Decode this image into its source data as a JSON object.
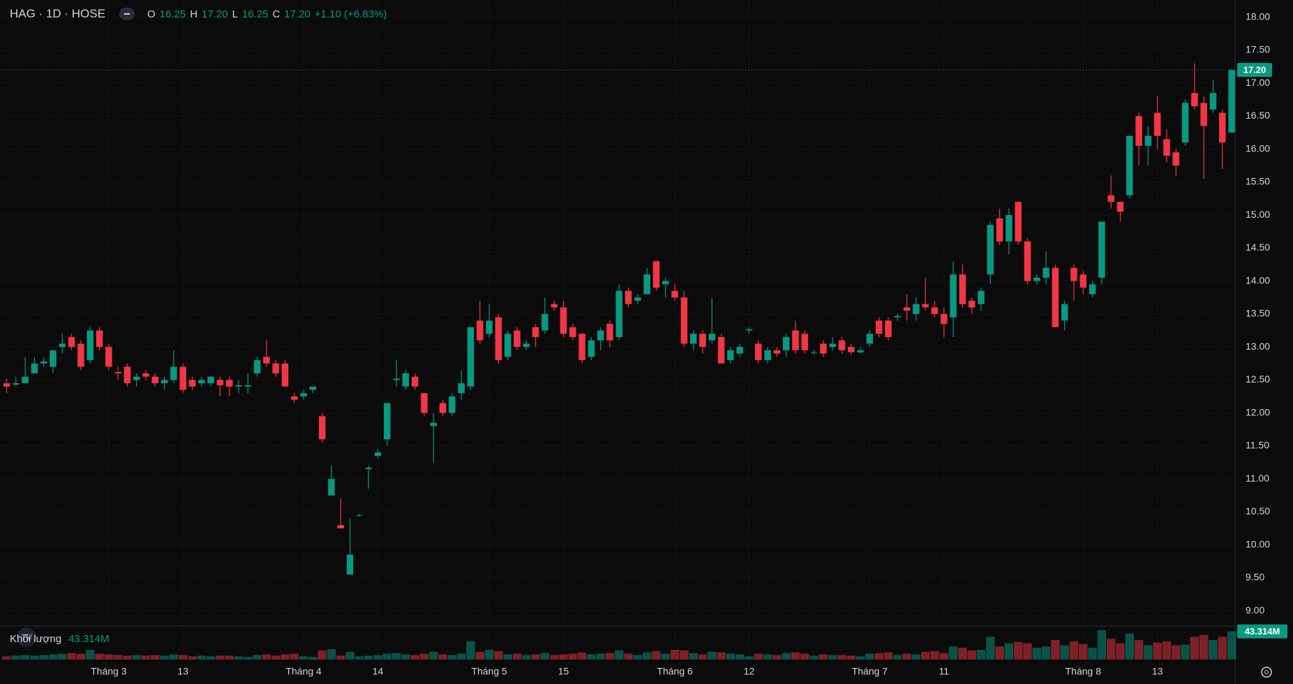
{
  "chart_data": {
    "type": "candlestick",
    "header": {
      "symbol": "HAG · 1D · HOSE",
      "o": "O",
      "o_value": "16.25",
      "h": "H",
      "h_value": "17.20",
      "l": "L",
      "l_value": "16.25",
      "c": "C",
      "c_value": "17.20",
      "change": "+1.10 (+6.83%)"
    },
    "volume_title": "Khối lượng",
    "volume_label": "43.314M",
    "last_price_label": "17.20",
    "last_price": 17.2,
    "up_color": "#089981",
    "down_color": "#f23645",
    "grid": true,
    "categories": [
      null,
      null,
      null,
      null,
      null,
      null,
      null,
      null,
      null,
      null,
      null,
      "Tháng 3",
      null,
      null,
      null,
      null,
      null,
      null,
      null,
      "13",
      null,
      null,
      null,
      null,
      null,
      null,
      null,
      null,
      null,
      null,
      null,
      null,
      "Tháng 4",
      null,
      null,
      null,
      null,
      null,
      null,
      null,
      "14",
      null,
      null,
      null,
      null,
      null,
      null,
      null,
      null,
      null,
      null,
      null,
      "Tháng 5",
      null,
      null,
      null,
      null,
      null,
      null,
      null,
      "15",
      null,
      null,
      null,
      null,
      null,
      null,
      null,
      null,
      null,
      null,
      null,
      "Tháng 6",
      null,
      null,
      null,
      null,
      null,
      null,
      null,
      "12",
      null,
      null,
      null,
      null,
      null,
      null,
      null,
      null,
      null,
      null,
      null,
      null,
      "Tháng 7",
      null,
      null,
      null,
      null,
      null,
      null,
      null,
      "11",
      null,
      null,
      null,
      null,
      null,
      null,
      null,
      null,
      null,
      null,
      null,
      null,
      null,
      null,
      "Tháng 8",
      null,
      null,
      null,
      null,
      null,
      null,
      null,
      "13",
      null,
      null,
      null,
      null,
      null,
      null,
      null,
      null
    ],
    "open": [
      12.45,
      12.43,
      12.45,
      12.6,
      12.75,
      12.7,
      13.0,
      13.15,
      13.05,
      12.8,
      13.25,
      13.0,
      12.62,
      12.7,
      12.5,
      12.6,
      12.55,
      12.45,
      12.5,
      12.7,
      12.5,
      12.45,
      12.45,
      12.5,
      12.5,
      12.4,
      12.4,
      12.6,
      12.85,
      12.75,
      12.75,
      12.25,
      12.25,
      12.35,
      11.95,
      10.75,
      10.3,
      9.55,
      10.45,
      11.15,
      11.35,
      11.6,
      12.5,
      12.4,
      12.55,
      12.3,
      11.8,
      12.15,
      12.0,
      12.3,
      12.4,
      13.4,
      13.2,
      13.45,
      12.85,
      13.25,
      13.0,
      13.3,
      13.25,
      13.65,
      13.6,
      13.3,
      13.2,
      12.85,
      13.1,
      13.35,
      13.15,
      13.85,
      13.7,
      13.8,
      14.3,
      13.95,
      13.85,
      13.75,
      13.05,
      13.2,
      13.1,
      13.15,
      12.8,
      12.9,
      13.25,
      13.05,
      12.8,
      12.95,
      12.95,
      13.25,
      13.2,
      12.92,
      13.05,
      13.0,
      13.1,
      13.0,
      12.92,
      13.05,
      13.4,
      13.4,
      13.45,
      13.6,
      13.5,
      13.65,
      13.6,
      13.5,
      13.45,
      14.1,
      13.7,
      13.65,
      14.1,
      14.95,
      14.6,
      15.2,
      14.6,
      14.0,
      14.05,
      14.2,
      13.4,
      14.2,
      14.1,
      13.8,
      14.05,
      15.3,
      15.2,
      15.3,
      16.5,
      16.05,
      16.55,
      16.15,
      15.95,
      16.1,
      16.85,
      16.7,
      16.6,
      16.55,
      16.25
    ],
    "high": [
      12.52,
      12.55,
      12.85,
      12.85,
      12.85,
      12.95,
      13.2,
      13.2,
      13.1,
      13.3,
      13.3,
      13.05,
      12.7,
      12.75,
      12.6,
      12.65,
      12.6,
      12.55,
      12.95,
      12.75,
      12.55,
      12.55,
      12.55,
      12.55,
      12.55,
      12.5,
      12.6,
      12.85,
      13.1,
      12.8,
      12.8,
      12.3,
      12.35,
      12.4,
      12.0,
      11.2,
      10.7,
      10.4,
      10.47,
      11.2,
      11.45,
      12.15,
      12.8,
      12.65,
      12.6,
      12.3,
      12.0,
      12.2,
      12.3,
      12.65,
      13.3,
      13.7,
      13.65,
      13.5,
      13.25,
      13.3,
      13.1,
      13.35,
      13.75,
      13.7,
      13.7,
      13.35,
      13.2,
      13.15,
      13.3,
      13.4,
      13.95,
      13.9,
      13.8,
      14.2,
      14.3,
      14.05,
      13.95,
      13.85,
      13.25,
      13.25,
      13.75,
      13.2,
      13.0,
      13.05,
      13.3,
      13.1,
      13.0,
      13.0,
      13.2,
      13.4,
      13.25,
      12.95,
      13.1,
      13.15,
      13.15,
      13.05,
      13.0,
      13.25,
      13.45,
      13.45,
      13.5,
      13.8,
      13.75,
      14.05,
      13.7,
      13.6,
      14.3,
      14.25,
      13.75,
      13.9,
      14.9,
      15.1,
      15.1,
      15.2,
      14.65,
      14.1,
      14.45,
      14.25,
      13.7,
      14.25,
      14.15,
      14.0,
      14.9,
      15.6,
      15.2,
      16.2,
      16.55,
      16.35,
      16.8,
      16.3,
      16.0,
      16.75,
      17.3,
      16.8,
      17.05,
      16.6,
      17.2
    ],
    "low": [
      12.3,
      12.4,
      12.45,
      12.6,
      12.7,
      12.6,
      12.9,
      12.95,
      12.65,
      12.75,
      12.95,
      12.65,
      12.5,
      12.4,
      12.4,
      12.5,
      12.4,
      12.35,
      12.45,
      12.3,
      12.35,
      12.4,
      12.4,
      12.25,
      12.25,
      12.3,
      12.3,
      12.55,
      12.7,
      12.55,
      12.4,
      12.15,
      12.2,
      12.3,
      11.55,
      10.75,
      10.25,
      9.55,
      10.43,
      10.85,
      11.3,
      11.5,
      12.4,
      12.35,
      12.35,
      11.95,
      11.25,
      11.95,
      11.95,
      12.2,
      12.35,
      13.05,
      13.15,
      12.75,
      12.8,
      12.95,
      12.95,
      13.0,
      13.2,
      13.55,
      13.15,
      13.1,
      12.75,
      12.8,
      12.95,
      13.0,
      13.1,
      13.6,
      13.65,
      13.8,
      13.85,
      13.75,
      13.7,
      13.0,
      12.95,
      12.9,
      13.05,
      12.75,
      12.75,
      12.85,
      13.2,
      12.75,
      12.75,
      12.85,
      12.85,
      12.9,
      12.9,
      12.88,
      12.85,
      12.95,
      12.9,
      12.88,
      12.9,
      13.0,
      13.15,
      13.1,
      13.4,
      13.4,
      13.4,
      13.55,
      13.45,
      13.15,
      13.15,
      13.6,
      13.5,
      13.55,
      13.95,
      14.55,
      14.4,
      14.55,
      13.95,
      13.95,
      13.95,
      13.3,
      13.25,
      13.7,
      13.8,
      13.75,
      13.95,
      15.1,
      14.9,
      15.25,
      15.75,
      15.75,
      16.0,
      15.8,
      15.6,
      16.05,
      16.6,
      15.55,
      16.55,
      15.7,
      16.25
    ],
    "close": [
      12.4,
      12.45,
      12.55,
      12.75,
      12.78,
      12.95,
      13.05,
      13.0,
      12.7,
      13.25,
      13.0,
      12.7,
      12.6,
      12.45,
      12.55,
      12.55,
      12.45,
      12.5,
      12.7,
      12.35,
      12.4,
      12.5,
      12.55,
      12.42,
      12.4,
      12.42,
      12.42,
      12.8,
      12.75,
      12.6,
      12.4,
      12.2,
      12.3,
      12.4,
      11.6,
      11.0,
      10.25,
      9.85,
      10.45,
      11.17,
      11.4,
      12.15,
      12.52,
      12.6,
      12.4,
      12.0,
      11.85,
      12.0,
      12.25,
      12.45,
      13.3,
      13.1,
      13.4,
      12.8,
      13.2,
      13.0,
      13.05,
      13.15,
      13.5,
      13.6,
      13.2,
      13.15,
      12.8,
      13.1,
      13.25,
      13.1,
      13.85,
      13.65,
      13.75,
      14.1,
      13.9,
      14.0,
      13.75,
      13.05,
      13.2,
      13.0,
      13.2,
      12.75,
      12.95,
      13.0,
      13.27,
      12.8,
      12.95,
      12.9,
      13.15,
      12.95,
      12.95,
      12.92,
      12.9,
      13.05,
      12.95,
      12.92,
      12.95,
      13.2,
      13.2,
      13.15,
      13.47,
      13.55,
      13.65,
      13.6,
      13.5,
      13.35,
      14.1,
      13.65,
      13.6,
      13.85,
      14.85,
      14.6,
      15.0,
      14.6,
      14.0,
      14.05,
      14.2,
      13.3,
      13.65,
      14.0,
      13.9,
      13.95,
      14.9,
      15.2,
      15.05,
      16.2,
      16.05,
      16.2,
      16.2,
      15.9,
      15.75,
      16.7,
      16.65,
      16.35,
      16.85,
      16.1,
      17.2
    ],
    "volume": [
      5,
      6,
      7,
      6,
      7,
      8,
      9,
      10,
      9,
      15,
      9,
      8,
      7,
      6,
      7,
      6,
      7,
      6,
      8,
      7,
      5,
      6,
      5,
      6,
      6,
      5,
      4,
      7,
      8,
      6,
      8,
      9,
      5,
      4,
      14,
      16,
      6,
      12,
      5,
      6,
      7,
      9,
      10,
      8,
      7,
      9,
      12,
      8,
      7,
      9,
      28,
      12,
      15,
      13,
      8,
      9,
      7,
      8,
      10,
      7,
      8,
      9,
      11,
      8,
      9,
      10,
      14,
      9,
      7,
      11,
      13,
      9,
      15,
      14,
      10,
      8,
      12,
      11,
      9,
      8,
      5,
      9,
      8,
      7,
      10,
      11,
      9,
      6,
      8,
      7,
      7,
      6,
      5,
      9,
      10,
      11,
      7,
      9,
      8,
      12,
      13,
      10,
      20,
      18,
      14,
      15,
      35,
      20,
      25,
      27,
      25,
      18,
      20,
      30,
      22,
      28,
      24,
      18,
      45,
      32,
      25,
      40,
      30,
      22,
      26,
      28,
      22,
      23,
      35,
      38,
      30,
      35,
      43.314
    ],
    "ylim": [
      8.79,
      18.26
    ],
    "yticks": [
      {
        "value": 9,
        "label": "9.00"
      },
      {
        "value": 9.5,
        "label": "9.50"
      },
      {
        "value": 10,
        "label": "10.00"
      },
      {
        "value": 10.5,
        "label": "10.50"
      },
      {
        "value": 11,
        "label": "11.00"
      },
      {
        "value": 11.5,
        "label": "11.50"
      },
      {
        "value": 12,
        "label": "12.00"
      },
      {
        "value": 12.5,
        "label": "12.50"
      },
      {
        "value": 13,
        "label": "13.00"
      },
      {
        "value": 13.5,
        "label": "13.50"
      },
      {
        "value": 14,
        "label": "14.00"
      },
      {
        "value": 14.5,
        "label": "14.50"
      },
      {
        "value": 15,
        "label": "15.00"
      },
      {
        "value": 15.5,
        "label": "15.50"
      },
      {
        "value": 16,
        "label": "16.00"
      },
      {
        "value": 16.5,
        "label": "16.50"
      },
      {
        "value": 17,
        "label": "17.00"
      },
      {
        "value": 17.5,
        "label": "17.50"
      },
      {
        "value": 18,
        "label": "18.00"
      }
    ]
  }
}
